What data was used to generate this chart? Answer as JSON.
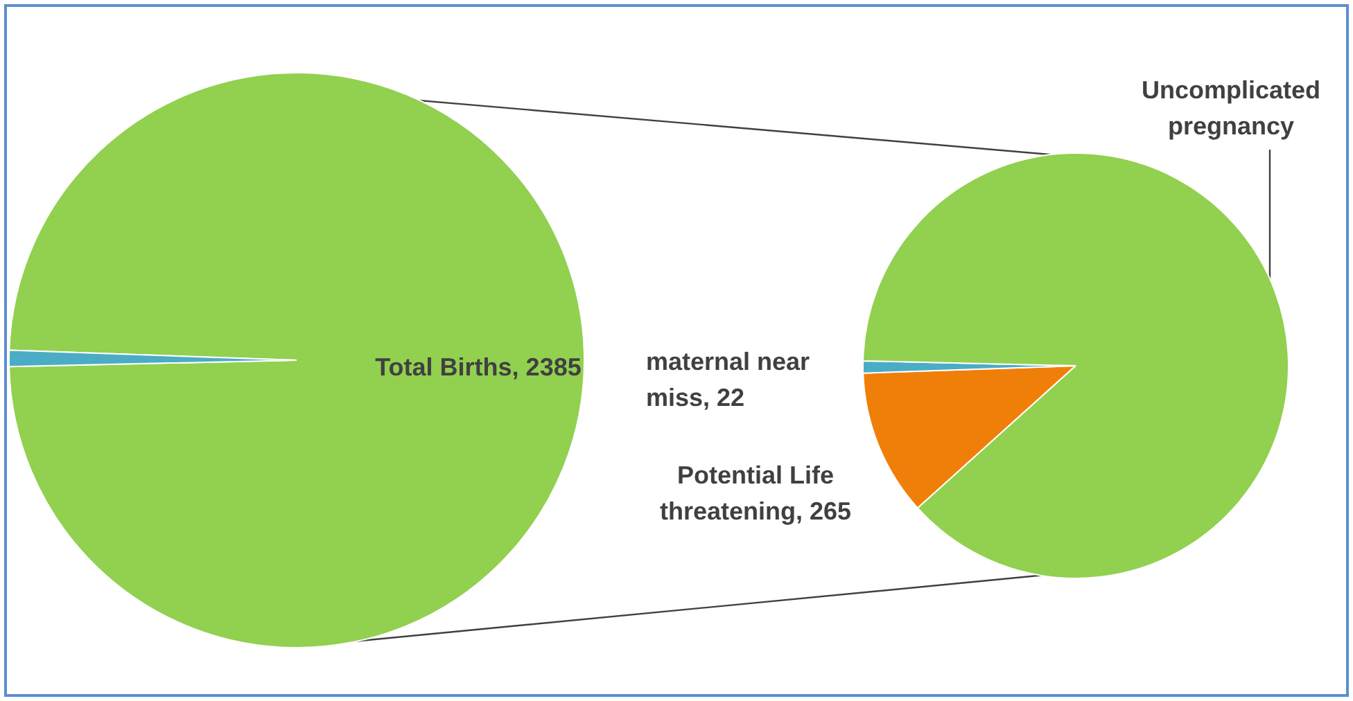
{
  "chart_data": [
    {
      "type": "pie",
      "categories": [
        "Total Births",
        null
      ],
      "values": [
        2385,
        22
      ],
      "colors": [
        "#92d050",
        "#4bacc6"
      ],
      "value_labels": [
        "2385",
        null
      ]
    },
    {
      "type": "pie",
      "categories": [
        "Potential Life threatening",
        "maternal near miss",
        "Uncomplicated pregnancy"
      ],
      "values": [
        265,
        22,
        2098
      ],
      "colors": [
        "#f07f09",
        "#4bacc6",
        "#92d050"
      ],
      "value_labels": [
        "265",
        "22",
        null
      ]
    }
  ]
}
